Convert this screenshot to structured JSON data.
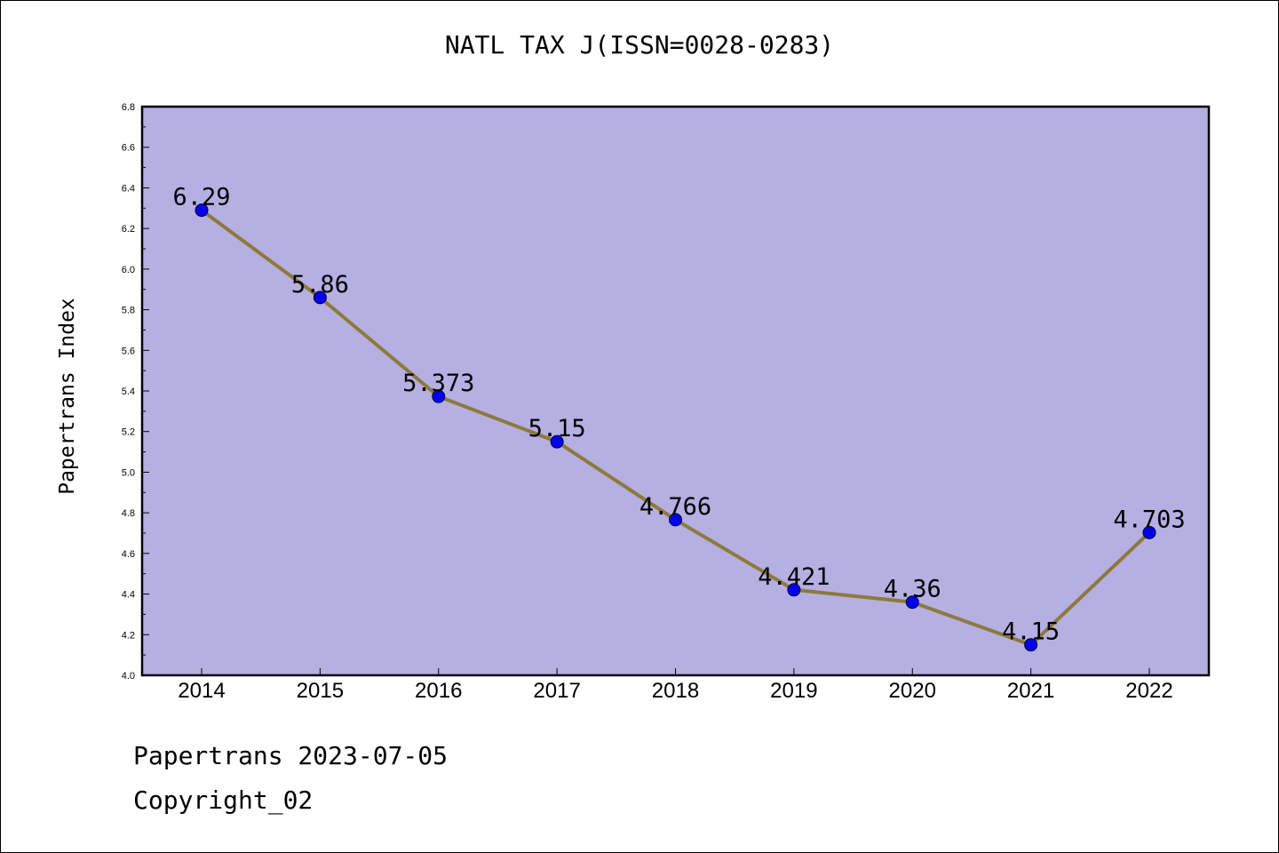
{
  "chart_data": {
    "type": "line",
    "title": "NATL TAX J(ISSN=0028-0283)",
    "xlabel": "",
    "ylabel": "Papertrans Index",
    "categories": [
      "2014",
      "2015",
      "2016",
      "2017",
      "2018",
      "2019",
      "2020",
      "2021",
      "2022"
    ],
    "values": [
      6.29,
      5.86,
      5.373,
      5.15,
      4.766,
      4.421,
      4.36,
      4.15,
      4.703
    ],
    "data_labels": [
      "6.29",
      "5.86",
      "5.373",
      "5.15",
      "4.766",
      "4.421",
      "4.36",
      "4.15",
      "4.703"
    ],
    "ylim": [
      4.0,
      6.8
    ],
    "yticks": [
      "4.0",
      "4.2",
      "4.4",
      "4.6",
      "4.8",
      "5.0",
      "5.2",
      "5.4",
      "5.6",
      "5.8",
      "6.0",
      "6.2",
      "6.4",
      "6.6",
      "6.8"
    ],
    "grid": false,
    "legend": "none",
    "colors": {
      "plot_background": "#b5afe2",
      "line": "#8c7a3c",
      "marker": "#0000ee"
    }
  },
  "footer": {
    "date_line": "Papertrans 2023-07-05",
    "copyright": "Copyright_02"
  }
}
